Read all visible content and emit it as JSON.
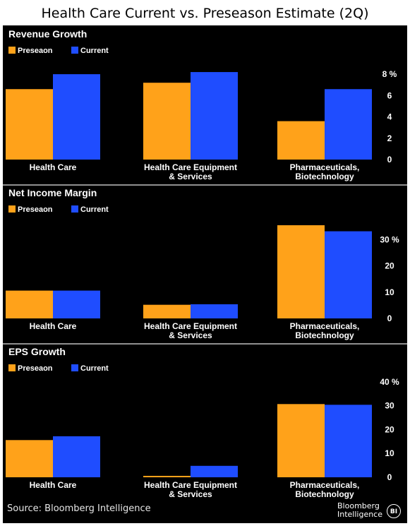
{
  "title": "Health Care Current vs. Preseason Estimate (2Q)",
  "colors": {
    "preseason": "#ffa21a",
    "current": "#1f4dff",
    "background": "#000000",
    "text": "#ffffff",
    "divider": "#bfbfbf"
  },
  "legend": {
    "preseason": "Preseaon",
    "current": "Current"
  },
  "chart_data": [
    {
      "type": "bar",
      "title": "Revenue Growth",
      "categories": [
        "Health Care",
        "Health Care Equipment\n& Services",
        "Pharmaceuticals,\nBiotechnology"
      ],
      "series": [
        {
          "name": "Preseaon",
          "values": [
            6.6,
            7.2,
            3.6
          ]
        },
        {
          "name": "Current",
          "values": [
            8.0,
            8.2,
            6.6
          ]
        }
      ],
      "yticks": [
        0,
        2,
        4,
        6,
        8
      ],
      "ytick_labels": [
        "0",
        "2",
        "4",
        "6",
        "8 %"
      ],
      "ylim": [
        0,
        8.8
      ],
      "legend_position": "top-left"
    },
    {
      "type": "bar",
      "title": "Net Income Margin",
      "categories": [
        "Health Care",
        "Health Care Equipment\n& Services",
        "Pharmaceuticals,\nBiotechnology"
      ],
      "series": [
        {
          "name": "Preseaon",
          "values": [
            10.6,
            5.2,
            35.5
          ]
        },
        {
          "name": "Current",
          "values": [
            10.6,
            5.4,
            33.2
          ]
        }
      ],
      "yticks": [
        0,
        10,
        20,
        30
      ],
      "ytick_labels": [
        "0",
        "10",
        "20",
        "30 %"
      ],
      "ylim": [
        0,
        39
      ],
      "legend_position": "top-left"
    },
    {
      "type": "bar",
      "title": "EPS Growth",
      "categories": [
        "Health Care",
        "Health Care Equipment\n& Services",
        "Pharmaceuticals,\nBiotechnology"
      ],
      "series": [
        {
          "name": "Preseaon",
          "values": [
            15.6,
            0.6,
            30.7
          ]
        },
        {
          "name": "Current",
          "values": [
            17.2,
            4.8,
            30.4
          ]
        }
      ],
      "yticks": [
        0,
        10,
        20,
        30,
        40
      ],
      "ytick_labels": [
        "0",
        "10",
        "20",
        "30",
        "40 %"
      ],
      "ylim": [
        0,
        45
      ],
      "legend_position": "top-left"
    }
  ],
  "footer": {
    "source": "Source: Bloomberg Intelligence",
    "brand_line1": "Bloomberg",
    "brand_line2": "Intelligence",
    "brand_badge": "BI"
  }
}
